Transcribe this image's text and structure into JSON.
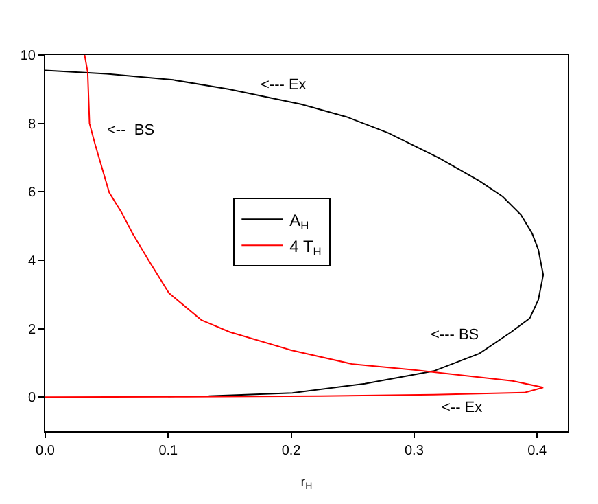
{
  "chart_data": {
    "type": "line",
    "xlabel": "r$_{H}$",
    "xlim": [
      0,
      0.425
    ],
    "ylim": [
      -1,
      10
    ],
    "xticks": [
      {
        "value": 0,
        "label": "0.0"
      },
      0.1,
      0.2,
      0.3,
      0.4
    ],
    "yticks": [
      0,
      2,
      4,
      6,
      8,
      10
    ],
    "grid": false,
    "legend": "center",
    "marker": "none",
    "line_style": "solid",
    "series": [
      {
        "name": "A$_{H}$",
        "color": "#000000",
        "x": [
          0,
          0.05,
          0.104,
          0.149,
          0.208,
          0.245,
          0.279,
          0.32,
          0.353,
          0.372,
          0.387,
          0.396,
          0.401,
          0.405,
          0.401,
          0.394,
          0.379,
          0.353,
          0.316,
          0.26,
          0.201,
          0.133,
          0.1
        ],
        "values": [
          9.55,
          9.45,
          9.27,
          9.0,
          8.56,
          8.19,
          7.72,
          6.99,
          6.32,
          5.86,
          5.32,
          4.78,
          4.31,
          3.57,
          2.84,
          2.3,
          1.9,
          1.27,
          0.76,
          0.39,
          0.12,
          0.03,
          0.02
        ]
      },
      {
        "name": "4 T$_{H}$",
        "color": "#ff0000",
        "x": [
          0.032,
          0.0345,
          0.036,
          0.0405,
          0.052,
          0.062,
          0.071,
          0.084,
          0.1006,
          0.127,
          0.15,
          0.2,
          0.25,
          0.3,
          0.35,
          0.38,
          0.405,
          0.39,
          0.316,
          0.224,
          0.115,
          0
        ],
        "values": [
          10,
          9.5,
          8,
          7.39,
          5.98,
          5.4,
          4.78,
          4,
          3.04,
          2.25,
          1.9,
          1.37,
          0.96,
          0.79,
          0.59,
          0.47,
          0.28,
          0.13,
          0.07,
          0.03,
          0.01,
          0
        ]
      }
    ],
    "annotations": [
      "<--- Ex",
      "<--  BS",
      "<--- BS",
      "<-- Ex"
    ]
  }
}
